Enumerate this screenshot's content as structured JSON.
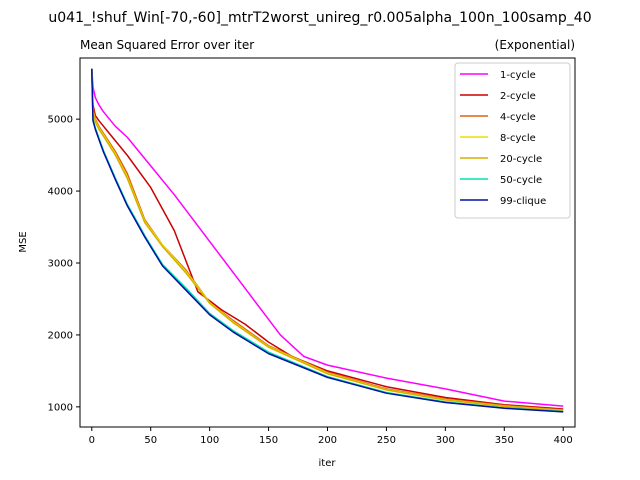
{
  "chart_data": {
    "type": "line",
    "suptitle": "u041_!shuf_Win[-70,-60]_mtrT2worst_unireg_r0.005alpha_100n_100samp_40",
    "title": "Mean Squared Error over iter",
    "title_right": "(Exponential)",
    "xlabel": "iter",
    "ylabel": "MSE",
    "xlim": [
      -10,
      410
    ],
    "ylim": [
      720,
      5850
    ],
    "xticks": [
      0,
      50,
      100,
      150,
      200,
      250,
      300,
      350,
      400
    ],
    "yticks": [
      1000,
      2000,
      3000,
      4000,
      5000
    ],
    "grid": false,
    "legend": "top-right",
    "series": [
      {
        "name": "1-cycle",
        "color": "#ff00ff",
        "x": [
          0,
          1,
          3,
          6,
          10,
          20,
          30,
          50,
          70,
          100,
          130,
          160,
          180,
          200,
          250,
          300,
          350,
          400
        ],
        "y": [
          5700,
          5450,
          5300,
          5200,
          5100,
          4900,
          4750,
          4350,
          3950,
          3300,
          2650,
          2000,
          1700,
          1580,
          1400,
          1250,
          1080,
          1010
        ]
      },
      {
        "name": "2-cycle",
        "color": "#cc0000",
        "x": [
          0,
          1,
          3,
          6,
          10,
          20,
          30,
          50,
          70,
          90,
          110,
          130,
          150,
          170,
          200,
          250,
          300,
          350,
          400
        ],
        "y": [
          5700,
          5200,
          5050,
          4980,
          4900,
          4700,
          4500,
          4050,
          3450,
          2600,
          2350,
          2150,
          1900,
          1700,
          1500,
          1280,
          1130,
          1030,
          970
        ]
      },
      {
        "name": "4-cycle",
        "color": "#e06010",
        "x": [
          0,
          1,
          3,
          6,
          10,
          20,
          30,
          45,
          60,
          80,
          100,
          120,
          150,
          200,
          250,
          300,
          350,
          400
        ],
        "y": [
          5700,
          5150,
          5000,
          4900,
          4800,
          4550,
          4250,
          3600,
          3250,
          2900,
          2450,
          2200,
          1850,
          1480,
          1250,
          1110,
          1020,
          960
        ]
      },
      {
        "name": "8-cycle",
        "color": "#e8e000",
        "x": [
          0,
          1,
          3,
          6,
          10,
          20,
          30,
          45,
          60,
          80,
          100,
          120,
          150,
          200,
          250,
          300,
          350,
          400
        ],
        "y": [
          5700,
          5100,
          4980,
          4880,
          4780,
          4520,
          4200,
          3580,
          3250,
          2880,
          2450,
          2180,
          1840,
          1470,
          1240,
          1100,
          1010,
          950
        ]
      },
      {
        "name": "20-cycle",
        "color": "#d4b000",
        "x": [
          0,
          1,
          3,
          6,
          10,
          20,
          30,
          45,
          60,
          80,
          100,
          120,
          150,
          200,
          250,
          300,
          350,
          400
        ],
        "y": [
          5700,
          5080,
          4960,
          4860,
          4760,
          4500,
          4180,
          3560,
          3230,
          2860,
          2440,
          2170,
          1830,
          1460,
          1235,
          1095,
          1005,
          945
        ]
      },
      {
        "name": "50-cycle",
        "color": "#00e0b0",
        "x": [
          0,
          1,
          3,
          6,
          10,
          20,
          30,
          45,
          60,
          80,
          100,
          120,
          150,
          200,
          250,
          300,
          350,
          400
        ],
        "y": [
          5700,
          5000,
          4880,
          4740,
          4560,
          4180,
          3820,
          3380,
          2980,
          2650,
          2300,
          2060,
          1760,
          1420,
          1200,
          1070,
          985,
          935
        ]
      },
      {
        "name": "99-clique",
        "color": "#0010a0",
        "x": [
          0,
          1,
          3,
          6,
          10,
          20,
          30,
          45,
          60,
          80,
          100,
          120,
          150,
          200,
          250,
          300,
          350,
          400
        ],
        "y": [
          5700,
          4980,
          4860,
          4720,
          4540,
          4160,
          3800,
          3360,
          2960,
          2620,
          2280,
          2040,
          1740,
          1410,
          1190,
          1060,
          980,
          930
        ]
      }
    ]
  }
}
